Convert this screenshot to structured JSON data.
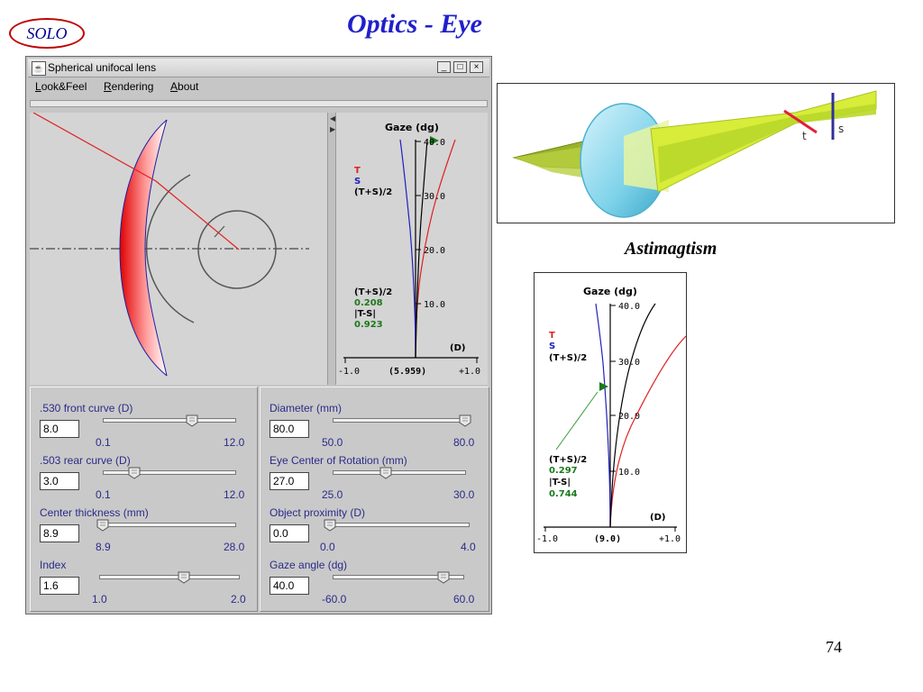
{
  "slide": {
    "logo_text": "SOLO",
    "title": "Optics - Eye",
    "page_number": "74",
    "caption": "Astimagtism"
  },
  "window": {
    "title": "Spherical unifocal lens",
    "minimize": "_",
    "maximize": "□",
    "close": "×"
  },
  "menu": {
    "items": [
      {
        "first": "L",
        "rest": "ook&Feel"
      },
      {
        "first": "R",
        "rest": "endering"
      },
      {
        "first": "A",
        "rest": "bout"
      }
    ]
  },
  "graph": {
    "title": "Gaze (dg)",
    "legend": {
      "t": "T",
      "s": "S",
      "avg": "(T+S)/2"
    },
    "ticks": [
      "40.0",
      "30.0",
      "20.0",
      "10.0"
    ],
    "stats": {
      "avg_label": "(T+S)/2",
      "avg_value": "0.208",
      "diff_label": "|T-S|",
      "diff_value": "0.923"
    },
    "x_unit": "(D)",
    "x_left": "-1.0",
    "x_center": "(5.959)",
    "x_right": "+1.0"
  },
  "graph2": {
    "title": "Gaze (dg)",
    "legend": {
      "t": "T",
      "s": "S",
      "avg": "(T+S)/2"
    },
    "ticks": [
      "40.0",
      "30.0",
      "20.0",
      "10.0"
    ],
    "stats": {
      "avg_label": "(T+S)/2",
      "avg_value": "0.297",
      "diff_label": "|T-S|",
      "diff_value": "0.744"
    },
    "x_unit": "(D)",
    "x_left": "-1.0",
    "x_center": "(9.0)",
    "x_right": "+1.0"
  },
  "astig": {
    "t_label": "t",
    "s_label": "s"
  },
  "controls": {
    "front_curve": {
      "label": ".530 front curve (D)",
      "value": "8.0",
      "min": "0.1",
      "max": "12.0"
    },
    "rear_curve": {
      "label": ".503 rear curve (D)",
      "value": "3.0",
      "min": "0.1",
      "max": "12.0"
    },
    "center_thickness": {
      "label": "Center thickness (mm)",
      "value": "8.9",
      "min": "8.9",
      "max": "28.0"
    },
    "index": {
      "label": "Index",
      "value": "1.6",
      "min": "1.0",
      "max": "2.0"
    },
    "diameter": {
      "label": "Diameter (mm)",
      "value": "80.0",
      "min": "50.0",
      "max": "80.0"
    },
    "eye_center": {
      "label": "Eye Center of Rotation (mm)",
      "value": "27.0",
      "min": "25.0",
      "max": "30.0"
    },
    "object_proximity": {
      "label": "Object proximity (D)",
      "value": "0.0",
      "min": "0.0",
      "max": "4.0"
    },
    "gaze_angle": {
      "label": "Gaze angle (dg)",
      "value": "40.0",
      "min": "-60.0",
      "max": "60.0"
    }
  },
  "colors": {
    "tangential": "#e02020",
    "sagittal": "#2020c0",
    "average": "#000000",
    "stat_value": "#1a7a1a",
    "label_blue": "#2b2b8a",
    "lens_green": "#c8e04a"
  }
}
